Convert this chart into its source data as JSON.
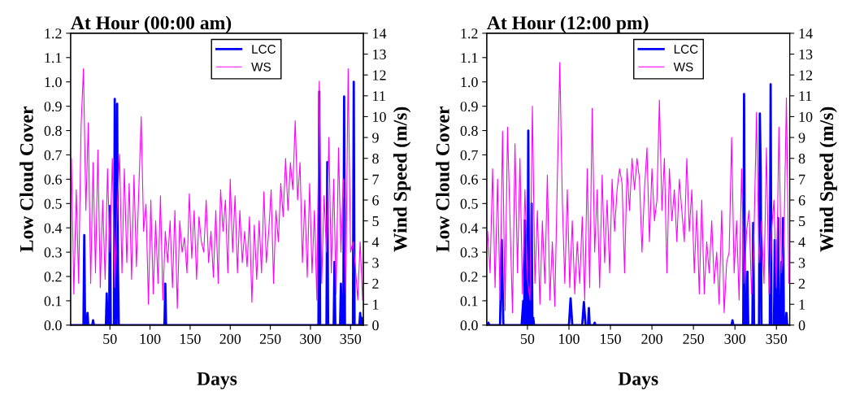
{
  "chart_data": [
    {
      "type": "line",
      "title": "At Hour (00:00 am)",
      "xlabel": "Days",
      "ylabel": "Low Cloud Cover",
      "y2label": "Wind Speed (m/s)",
      "legend": "top",
      "xlim": [
        1,
        366
      ],
      "xticks": [
        50,
        100,
        150,
        200,
        250,
        300,
        350
      ],
      "ylim": [
        0,
        1.2
      ],
      "yticks": [
        {
          "value": 0,
          "label": "0.0"
        },
        {
          "value": 0.1,
          "label": "0.1"
        },
        {
          "value": 0.2,
          "label": "0.2"
        },
        {
          "value": 0.3,
          "label": "0.3"
        },
        {
          "value": 0.4,
          "label": "0.4"
        },
        {
          "value": 0.5,
          "label": "0.5"
        },
        {
          "value": 0.6,
          "label": "0.6"
        },
        {
          "value": 0.7,
          "label": "0.7"
        },
        {
          "value": 0.8,
          "label": "0.8"
        },
        {
          "value": 0.9,
          "label": "0.9"
        },
        {
          "value": 1,
          "label": "1.0"
        },
        {
          "value": 1.1,
          "label": "1.1"
        },
        {
          "value": 1.2,
          "label": "1.2"
        }
      ],
      "y2lim": [
        0,
        14
      ],
      "y2ticks": [
        0,
        1,
        2,
        3,
        4,
        5,
        6,
        7,
        8,
        9,
        10,
        11,
        12,
        13,
        14
      ],
      "series": [
        {
          "name": "WS",
          "color": "#ff00ff",
          "axis": "y2",
          "x": [
            2,
            5,
            8,
            11,
            14,
            17,
            20,
            23,
            26,
            29,
            32,
            35,
            38,
            41,
            44,
            47,
            50,
            53,
            56,
            59,
            62,
            65,
            68,
            71,
            74,
            77,
            80,
            83,
            86,
            89,
            92,
            95,
            98,
            101,
            104,
            107,
            110,
            113,
            116,
            119,
            122,
            125,
            128,
            131,
            134,
            137,
            140,
            143,
            146,
            149,
            152,
            155,
            158,
            161,
            164,
            167,
            170,
            173,
            176,
            179,
            182,
            185,
            188,
            191,
            194,
            197,
            200,
            203,
            206,
            209,
            212,
            215,
            218,
            221,
            224,
            227,
            230,
            233,
            236,
            239,
            242,
            245,
            248,
            251,
            254,
            257,
            260,
            263,
            266,
            269,
            272,
            275,
            278,
            281,
            284,
            287,
            290,
            293,
            296,
            299,
            302,
            305,
            308,
            311,
            314,
            317,
            320,
            323,
            326,
            329,
            332,
            335,
            338,
            341,
            344,
            347,
            350,
            353,
            356,
            359,
            362,
            365
          ],
          "values": [
            8.0,
            1.5,
            6.5,
            2.0,
            9.5,
            12.3,
            5.5,
            9.7,
            2.0,
            7.8,
            2.5,
            8.4,
            1.8,
            6.0,
            2.2,
            7.5,
            3.5,
            8.0,
            1.8,
            5.5,
            8.2,
            2.5,
            7.5,
            3.0,
            6.8,
            2.2,
            7.2,
            2.8,
            6.5,
            10.0,
            4.5,
            5.8,
            1.0,
            6.0,
            1.5,
            5.0,
            2.0,
            6.2,
            1.2,
            4.5,
            3.0,
            5.0,
            1.8,
            5.5,
            0.8,
            5.0,
            3.5,
            4.2,
            2.5,
            6.3,
            3.2,
            5.5,
            2.2,
            5.2,
            4.0,
            3.5,
            6.0,
            3.0,
            4.5,
            2.3,
            5.5,
            2.0,
            6.5,
            4.5,
            6.0,
            2.5,
            7.0,
            3.5,
            6.2,
            2.5,
            5.5,
            3.0,
            4.5,
            2.8,
            5.2,
            1.1,
            4.8,
            2.2,
            5.0,
            2.5,
            6.4,
            3.0,
            4.5,
            6.5,
            2.0,
            5.5,
            4.0,
            6.8,
            5.2,
            8.0,
            5.5,
            7.8,
            6.5,
            9.8,
            6.0,
            7.8,
            3.0,
            6.0,
            2.3,
            6.8,
            2.5,
            5.5,
            1.2,
            11.7,
            2.0,
            6.2,
            3.5,
            9.0,
            2.5,
            7.0,
            1.5,
            8.5,
            3.5,
            7.0,
            1.5,
            12.3,
            3.5,
            4.0,
            2.8,
            1.2,
            4.0,
            1.2
          ]
        },
        {
          "name": "LCC",
          "color": "#0000ff",
          "x": [
            1,
            17,
            18,
            19,
            21,
            22,
            23,
            28,
            29,
            30,
            45,
            46,
            47,
            49,
            50,
            51,
            55,
            56,
            57,
            58,
            59,
            60,
            61,
            118,
            119,
            120,
            310,
            311,
            312,
            320,
            321,
            322,
            329,
            330,
            331,
            337,
            338,
            339,
            341,
            342,
            343,
            353,
            354,
            355,
            361,
            362,
            363,
            364,
            365
          ],
          "values": [
            0,
            0,
            0.37,
            0,
            0,
            0.05,
            0,
            0,
            0.02,
            0,
            0,
            0.13,
            0,
            0,
            0.49,
            0,
            0,
            0.93,
            0,
            0,
            0.91,
            0.23,
            0,
            0,
            0.17,
            0,
            0,
            0.96,
            0,
            0,
            0.67,
            0,
            0,
            0.26,
            0,
            0,
            0.17,
            0,
            0,
            0.94,
            0,
            0,
            1.0,
            0,
            0,
            0.05,
            0,
            0.03,
            0
          ]
        }
      ]
    },
    {
      "type": "line",
      "title": "At Hour (12:00 pm)",
      "xlabel": "Days",
      "ylabel": "Low Cloud Cover",
      "y2label": "Wind Speed (m/s)",
      "legend": "top",
      "xlim": [
        1,
        366
      ],
      "xticks": [
        50,
        100,
        150,
        200,
        250,
        300,
        350
      ],
      "ylim": [
        0,
        1.2
      ],
      "yticks": [
        {
          "value": 0,
          "label": "0.0"
        },
        {
          "value": 0.1,
          "label": "0.1"
        },
        {
          "value": 0.2,
          "label": "0.2"
        },
        {
          "value": 0.3,
          "label": "0.3"
        },
        {
          "value": 0.4,
          "label": "0.4"
        },
        {
          "value": 0.5,
          "label": "0.5"
        },
        {
          "value": 0.6,
          "label": "0.6"
        },
        {
          "value": 0.7,
          "label": "0.7"
        },
        {
          "value": 0.8,
          "label": "0.8"
        },
        {
          "value": 0.9,
          "label": "0.9"
        },
        {
          "value": 1,
          "label": "1.0"
        },
        {
          "value": 1.1,
          "label": "1.1"
        },
        {
          "value": 1.2,
          "label": "1.2"
        }
      ],
      "y2lim": [
        0,
        14
      ],
      "y2ticks": [
        0,
        1,
        2,
        3,
        4,
        5,
        6,
        7,
        8,
        9,
        10,
        11,
        12,
        13,
        14
      ],
      "series": [
        {
          "name": "WS",
          "color": "#ff00ff",
          "axis": "y2",
          "x": [
            2,
            5,
            8,
            11,
            14,
            17,
            20,
            23,
            26,
            29,
            32,
            35,
            38,
            41,
            44,
            47,
            50,
            53,
            56,
            59,
            62,
            65,
            68,
            71,
            74,
            77,
            80,
            83,
            86,
            89,
            92,
            95,
            98,
            101,
            104,
            107,
            110,
            113,
            116,
            119,
            122,
            125,
            128,
            131,
            134,
            137,
            140,
            143,
            146,
            149,
            152,
            155,
            158,
            161,
            164,
            167,
            170,
            173,
            176,
            179,
            182,
            185,
            188,
            191,
            194,
            197,
            200,
            203,
            206,
            209,
            212,
            215,
            218,
            221,
            224,
            227,
            230,
            233,
            236,
            239,
            242,
            245,
            248,
            251,
            254,
            257,
            260,
            263,
            266,
            269,
            272,
            275,
            278,
            281,
            284,
            287,
            290,
            293,
            296,
            299,
            302,
            305,
            308,
            311,
            314,
            317,
            320,
            323,
            326,
            329,
            332,
            335,
            338,
            341,
            344,
            347,
            350,
            353,
            356,
            359,
            362,
            365
          ],
          "values": [
            4.5,
            2.5,
            7.5,
            1.8,
            7.0,
            1.2,
            9.3,
            0.7,
            9.5,
            5.0,
            0.6,
            8.7,
            2.5,
            8.0,
            1.5,
            6.5,
            2.2,
            1.2,
            10.5,
            2.0,
            5.5,
            1.0,
            5.0,
            2.0,
            7.2,
            1.2,
            4.0,
            0.9,
            7.0,
            12.6,
            6.0,
            2.0,
            6.5,
            1.8,
            5.0,
            1.5,
            4.0,
            2.0,
            5.2,
            1.2,
            7.5,
            1.8,
            10.4,
            3.5,
            6.5,
            1.8,
            7.2,
            3.0,
            6.0,
            2.5,
            7.0,
            4.5,
            6.5,
            7.5,
            6.8,
            2.5,
            7.5,
            5.5,
            8.0,
            6.5,
            8.0,
            7.0,
            3.5,
            6.5,
            8.5,
            4.0,
            7.5,
            5.0,
            6.0,
            10.8,
            5.5,
            8.0,
            2.5,
            7.5,
            5.0,
            6.5,
            4.0,
            7.0,
            5.5,
            4.0,
            8.0,
            4.5,
            6.5,
            2.5,
            5.5,
            1.5,
            6.0,
            1.5,
            4.0,
            2.5,
            5.0,
            2.0,
            3.5,
            1.0,
            5.5,
            0.6,
            3.0,
            3.5,
            9.0,
            2.5,
            5.0,
            1.2,
            7.5,
            2.0,
            4.5,
            5.5,
            1.5,
            4.5,
            10.2,
            3.0,
            5.0,
            2.0,
            8.5,
            1.5,
            4.5,
            6.0,
            1.8,
            9.5,
            2.5,
            4.0,
            10.9,
            2.0
          ]
        },
        {
          "name": "LCC",
          "color": "#0000ff",
          "x": [
            1,
            2,
            3,
            4,
            17,
            19,
            21,
            43,
            45,
            46,
            47,
            48,
            50,
            51,
            52,
            54,
            55,
            56,
            57,
            58,
            100,
            102,
            104,
            116,
            118,
            120,
            123,
            124,
            125,
            130,
            131,
            132,
            296,
            297,
            298,
            310,
            311,
            312,
            314,
            315,
            316,
            321,
            322,
            323,
            329,
            330,
            331,
            332,
            342,
            343,
            344,
            347,
            348,
            349,
            351,
            352,
            353,
            355,
            356,
            357,
            358,
            359,
            361,
            362,
            363,
            365
          ],
          "values": [
            0,
            0,
            0.01,
            0,
            0,
            0.35,
            0,
            0,
            0.1,
            0,
            0.43,
            0,
            0,
            0.8,
            0,
            0,
            0.5,
            0,
            0.03,
            0,
            0,
            0.11,
            0,
            0,
            0.095,
            0,
            0,
            0.07,
            0,
            0,
            0.01,
            0,
            0,
            0.02,
            0,
            0,
            0.95,
            0,
            0,
            0.22,
            0,
            0,
            0.42,
            0,
            0,
            0.87,
            0.63,
            0,
            0,
            0.99,
            0,
            0,
            0.35,
            0,
            0,
            0.44,
            0,
            0,
            0.26,
            0,
            0.44,
            0,
            0,
            0.05,
            0,
            0
          ]
        }
      ]
    }
  ]
}
